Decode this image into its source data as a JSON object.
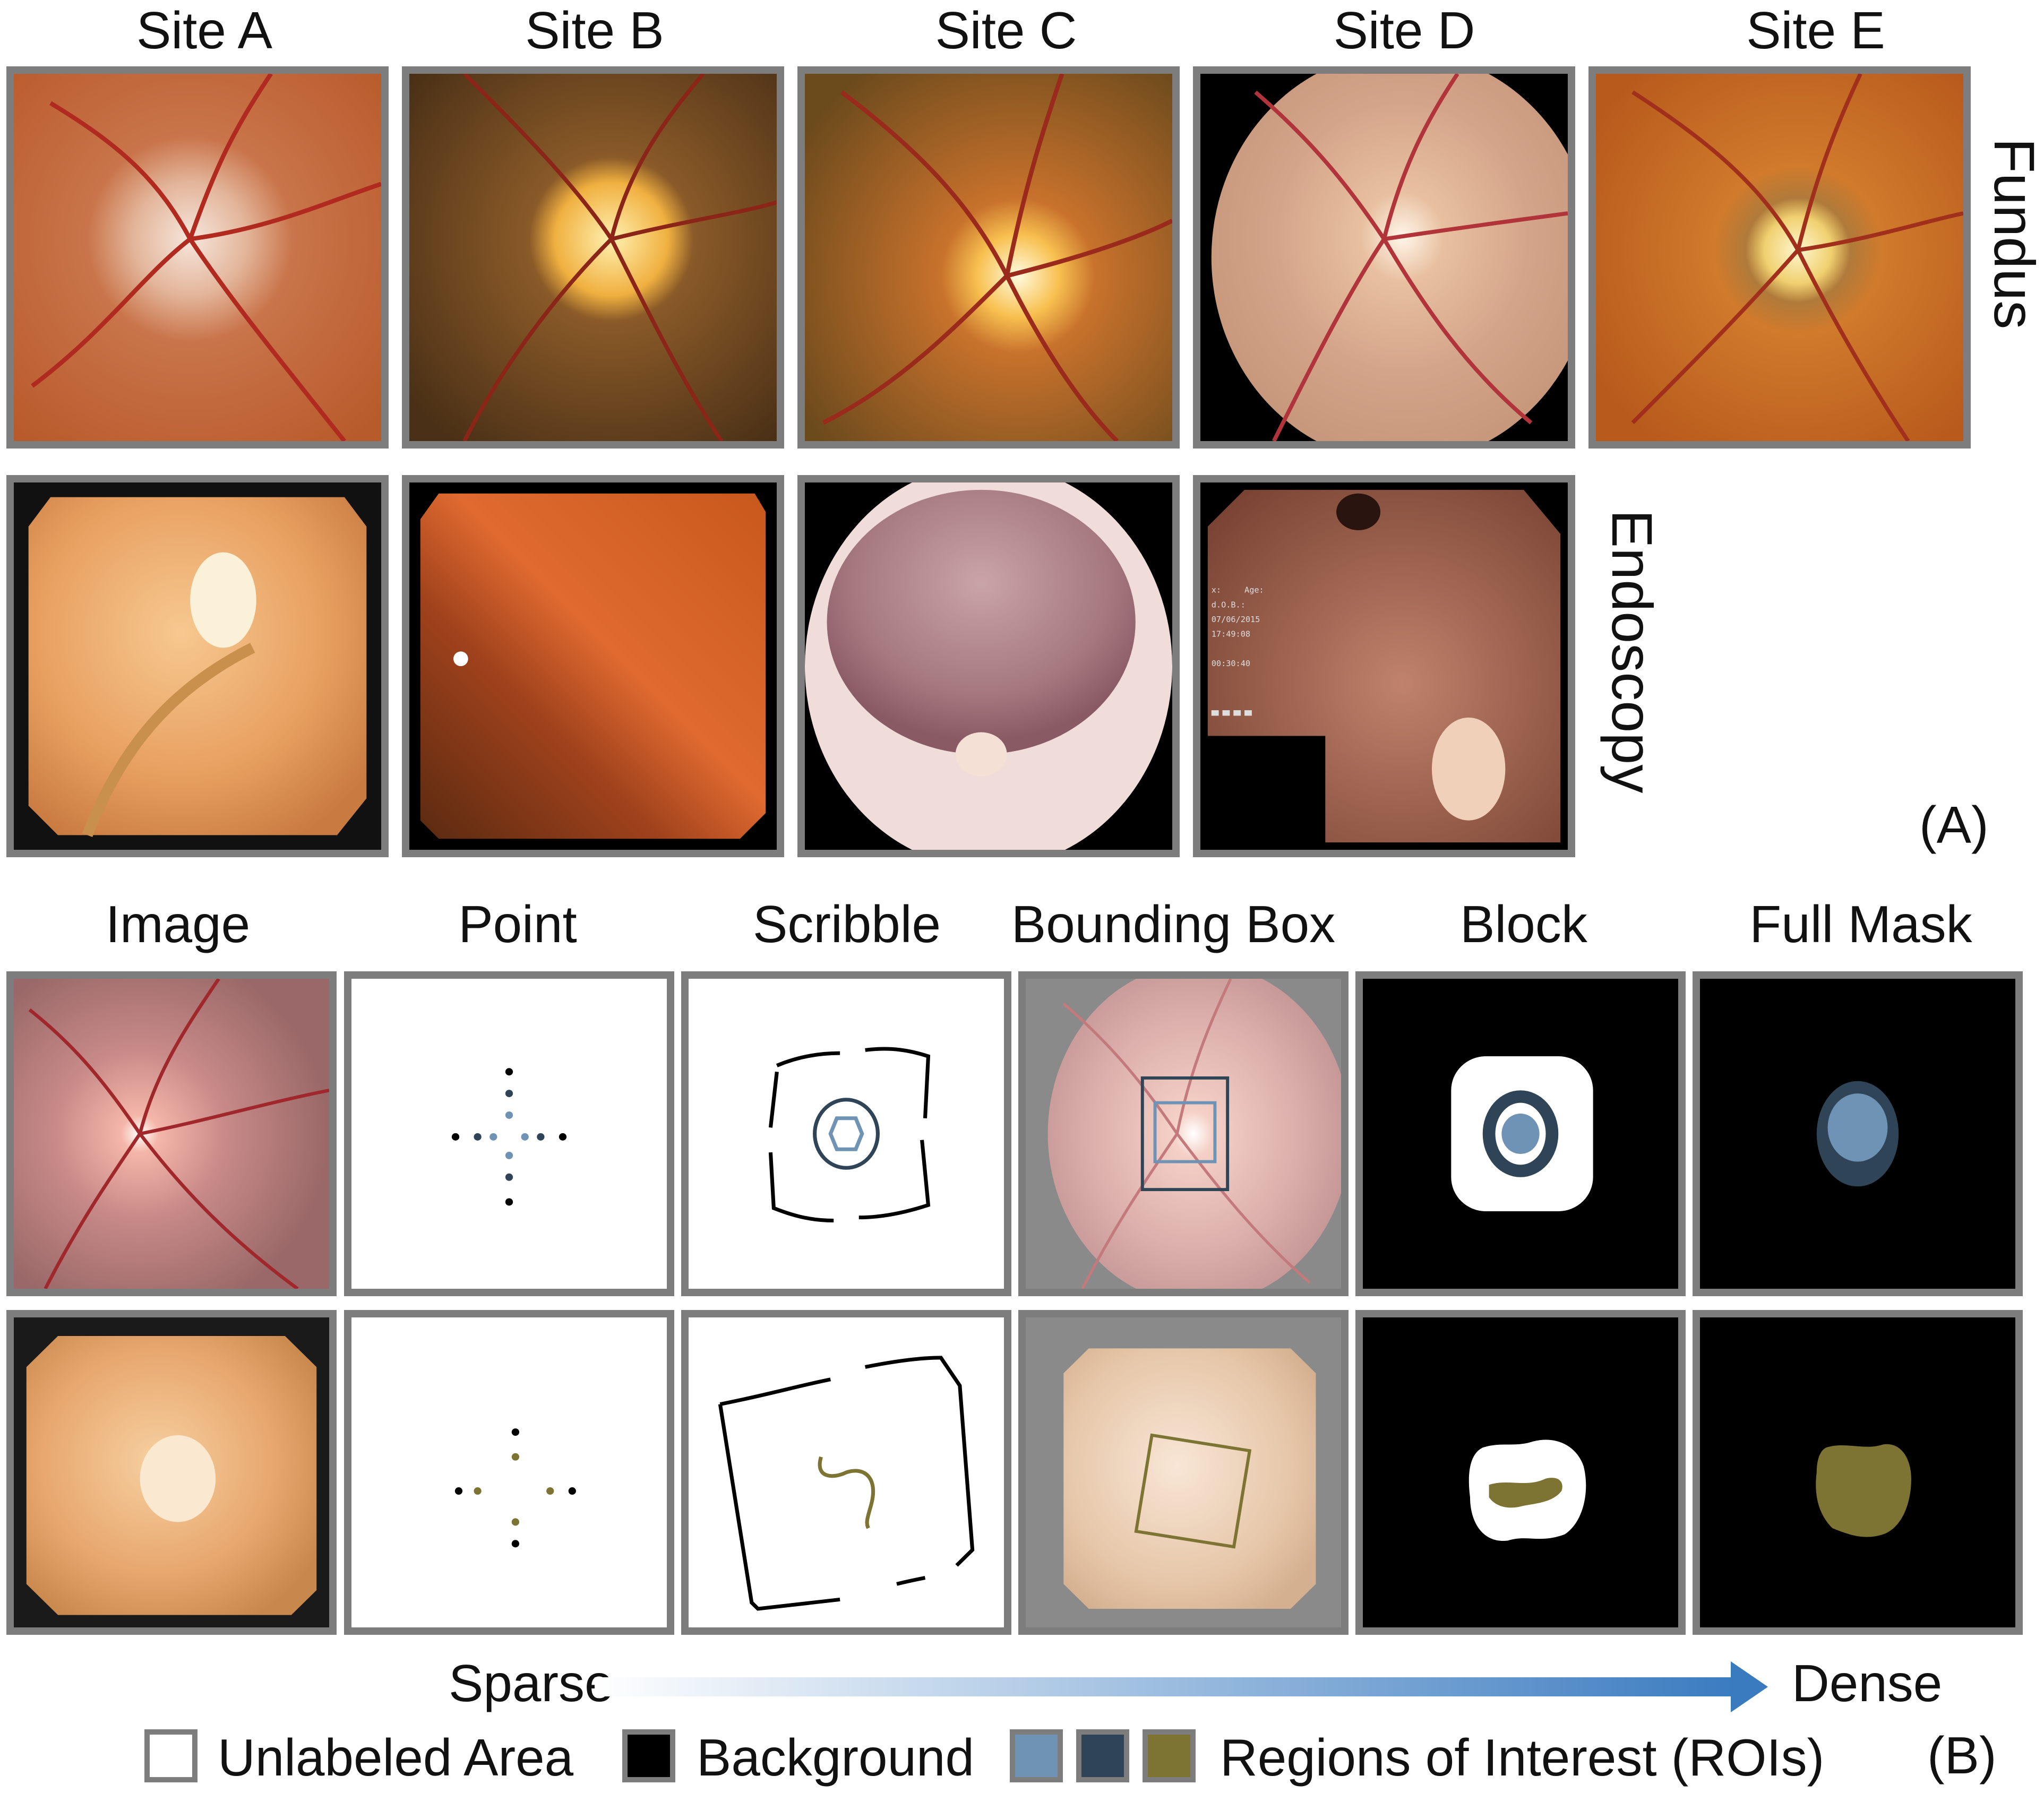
{
  "panel_a": {
    "site_labels": [
      "Site A",
      "Site B",
      "Site C",
      "Site D",
      "Site E"
    ],
    "row_labels": {
      "fundus": "Fundus",
      "endoscopy": "Endoscopy"
    },
    "letter": "(A)",
    "endoscopy_overlay_text": [
      "x:",
      "Age:",
      "d.O.B.:",
      "07/06/2015",
      "17:49:08",
      "00:30:40"
    ]
  },
  "panel_b": {
    "column_labels": [
      "Image",
      "Point",
      "Scribble",
      "Bounding Box",
      "Block",
      "Full Mask"
    ],
    "axis": {
      "start": "Sparse",
      "end": "Dense"
    },
    "letter": "(B)",
    "legend": {
      "unlabeled": "Unlabeled Area",
      "background": "Background",
      "roi": "Regions of Interest (ROIs)"
    },
    "colors": {
      "roi_blue_light": "#6f93b4",
      "roi_blue_dark": "#2f4457",
      "roi_olive": "#7d7433",
      "background": "#000000",
      "unlabeled": "#ffffff",
      "frame": "#7d7d7d",
      "arrow": "#3a7bc0"
    }
  }
}
